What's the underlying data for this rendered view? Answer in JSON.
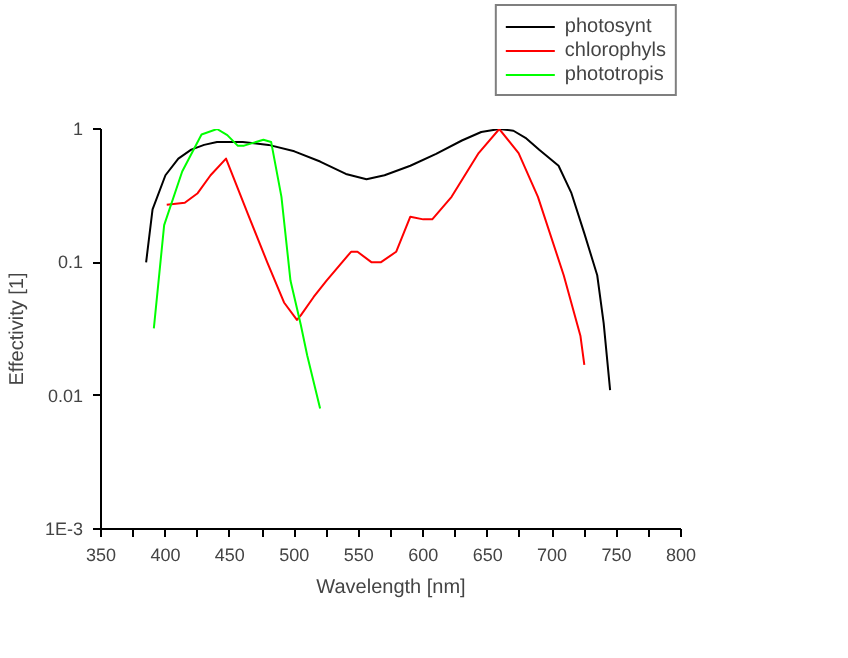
{
  "chart_data": {
    "type": "line",
    "xlabel": "Wavelength [nm]",
    "ylabel": "Effectivity [1]",
    "xlim": [
      350,
      800
    ],
    "ylim": [
      0.001,
      1
    ],
    "log": "y",
    "xticks": [
      350,
      {
        "value": 375,
        "label": null
      },
      400,
      {
        "value": 425,
        "label": null
      },
      450,
      {
        "value": 475,
        "label": null
      },
      500,
      {
        "value": 525,
        "label": null
      },
      550,
      {
        "value": 575,
        "label": null
      },
      600,
      {
        "value": 625,
        "label": null
      },
      650,
      {
        "value": 675,
        "label": null
      },
      700,
      {
        "value": 725,
        "label": null
      },
      750,
      {
        "value": 775,
        "label": null
      },
      800
    ],
    "yticks": [
      {
        "value": 0.001,
        "label": "1E-3"
      },
      0.01,
      0.1,
      1
    ],
    "grid": false,
    "legend": "top right",
    "marker": "none",
    "line_style": "solid",
    "series": [
      {
        "name": "photosynt",
        "color": "#000000",
        "x": [
          385,
          390,
          400,
          410,
          420,
          430,
          440,
          460,
          480,
          500,
          520,
          540,
          556,
          570,
          590,
          610,
          630,
          645,
          659,
          670,
          680,
          690,
          705,
          715,
          725,
          735,
          740,
          745
        ],
        "values": [
          0.1,
          0.25,
          0.45,
          0.6,
          0.7,
          0.76,
          0.8,
          0.8,
          0.76,
          0.68,
          0.57,
          0.46,
          0.42,
          0.45,
          0.53,
          0.65,
          0.82,
          0.95,
          1.0,
          0.97,
          0.85,
          0.7,
          0.53,
          0.33,
          0.165,
          0.08,
          0.035,
          0.011
        ]
      },
      {
        "name": "chlorophyls",
        "color": "#ff0000",
        "x": [
          401,
          415,
          425,
          435,
          447,
          464,
          479,
          492,
          502,
          505,
          515,
          525,
          544,
          549,
          560,
          567,
          579,
          590,
          600,
          607,
          622,
          643,
          659,
          674,
          689,
          709,
          722,
          725
        ],
        "values": [
          0.27,
          0.28,
          0.33,
          0.45,
          0.6,
          0.23,
          0.1,
          0.05,
          0.037,
          0.04,
          0.055,
          0.073,
          0.12,
          0.12,
          0.1,
          0.1,
          0.12,
          0.22,
          0.21,
          0.21,
          0.31,
          0.66,
          1.0,
          0.66,
          0.31,
          0.08,
          0.028,
          0.017
        ]
      },
      {
        "name": "phototropis",
        "color": "#00ff00",
        "x": [
          391,
          399,
          413,
          428,
          440,
          448,
          456,
          461,
          476,
          482,
          490,
          497,
          505,
          510,
          520
        ],
        "values": [
          0.032,
          0.19,
          0.48,
          0.91,
          1.0,
          0.9,
          0.75,
          0.75,
          0.83,
          0.8,
          0.31,
          0.073,
          0.034,
          0.02,
          0.008
        ]
      }
    ]
  }
}
